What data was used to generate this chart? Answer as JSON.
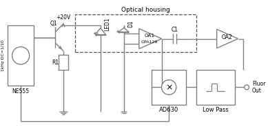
{
  "title": "Optical housing",
  "bg_color": "#ffffff",
  "line_color": "#808080",
  "text_color": "#000000",
  "figsize": [
    3.89,
    1.84
  ],
  "dpi": 100,
  "labels": {
    "ne555": "NE555",
    "freq": "1kHz DC=1/10",
    "v20": "+20V",
    "q1": "Q1",
    "r1": "R1",
    "led1": "LED1",
    "d1": "D1",
    "oa1": "OA1",
    "opa129": "OPA129",
    "c1": "C1",
    "oa2": "OA2",
    "ad630": "AD630",
    "lowpass": "Low Pass",
    "fluor": "Fluor",
    "out": "Out"
  }
}
